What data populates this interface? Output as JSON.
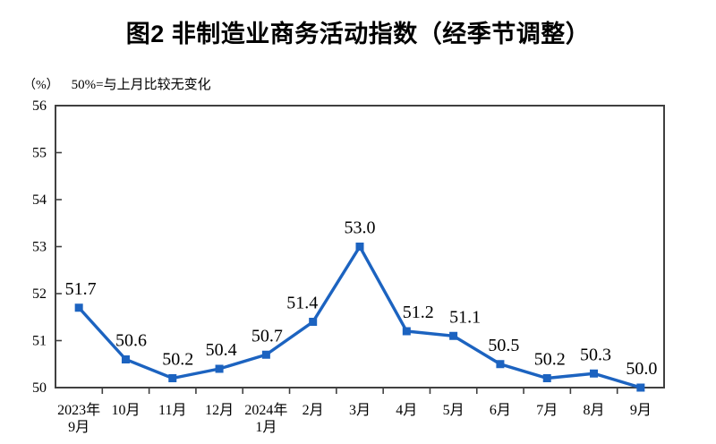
{
  "colors": {
    "line": "#1c63c0",
    "marker": "#1c63c0",
    "axis": "#404040",
    "text": "#000000"
  },
  "chart_data": {
    "type": "line",
    "title": "图2 非制造业商务活动指数（经季节调整）",
    "unit": "（%）",
    "annotation": "50%=与上月比较无变化",
    "categories": [
      [
        "2023年",
        "9月"
      ],
      [
        "10月"
      ],
      [
        "11月"
      ],
      [
        "12月"
      ],
      [
        "2024年",
        "1月"
      ],
      [
        "2月"
      ],
      [
        "3月"
      ],
      [
        "4月"
      ],
      [
        "5月"
      ],
      [
        "6月"
      ],
      [
        "7月"
      ],
      [
        "8月"
      ],
      [
        "9月"
      ]
    ],
    "values": [
      51.7,
      50.6,
      50.2,
      50.4,
      50.7,
      51.4,
      53.0,
      51.2,
      51.1,
      50.5,
      50.2,
      50.3,
      50.0
    ],
    "ylim": [
      50,
      56
    ],
    "yticks": [
      50,
      51,
      52,
      53,
      54,
      55,
      56
    ],
    "grid": false,
    "legend": "none",
    "marker": "square",
    "label_dx": [
      2,
      6,
      6,
      2,
      1,
      -12,
      0,
      13,
      13,
      4,
      3,
      2,
      1
    ]
  }
}
